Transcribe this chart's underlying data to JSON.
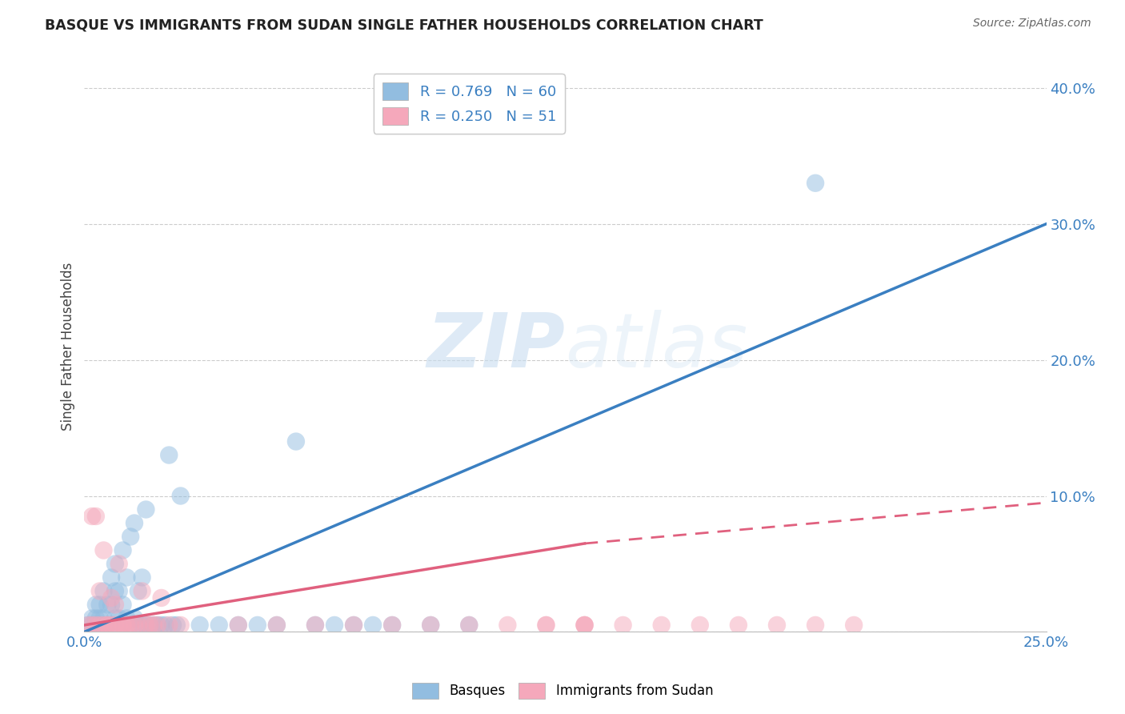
{
  "title": "BASQUE VS IMMIGRANTS FROM SUDAN SINGLE FATHER HOUSEHOLDS CORRELATION CHART",
  "source": "Source: ZipAtlas.com",
  "ylabel": "Single Father Households",
  "background_color": "#ffffff",
  "watermark_zip": "ZIP",
  "watermark_atlas": "atlas",
  "legend1_label": "R = 0.769   N = 60",
  "legend2_label": "R = 0.250   N = 51",
  "legend_bottom1": "Basques",
  "legend_bottom2": "Immigrants from Sudan",
  "blue_color": "#92bde0",
  "blue_line_color": "#3a7fc1",
  "pink_color": "#f5a8bb",
  "pink_line_color": "#e0607e",
  "xlim": [
    0.0,
    0.25
  ],
  "ylim": [
    0.0,
    0.42
  ],
  "yticks": [
    0.0,
    0.1,
    0.2,
    0.3,
    0.4
  ],
  "ytick_labels": [
    "",
    "10.0%",
    "20.0%",
    "30.0%",
    "40.0%"
  ],
  "xticks": [
    0.0,
    0.05,
    0.1,
    0.15,
    0.2,
    0.25
  ],
  "xtick_labels": [
    "0.0%",
    "",
    "",
    "",
    "",
    "25.0%"
  ],
  "blue_scatter_x": [
    0.001,
    0.002,
    0.002,
    0.003,
    0.003,
    0.003,
    0.004,
    0.004,
    0.004,
    0.005,
    0.005,
    0.005,
    0.006,
    0.006,
    0.007,
    0.007,
    0.007,
    0.008,
    0.008,
    0.008,
    0.009,
    0.009,
    0.01,
    0.01,
    0.01,
    0.011,
    0.011,
    0.012,
    0.012,
    0.013,
    0.013,
    0.014,
    0.014,
    0.015,
    0.015,
    0.016,
    0.016,
    0.017,
    0.018,
    0.019,
    0.02,
    0.021,
    0.022,
    0.023,
    0.024,
    0.025,
    0.03,
    0.035,
    0.04,
    0.045,
    0.05,
    0.055,
    0.06,
    0.065,
    0.07,
    0.075,
    0.08,
    0.09,
    0.1,
    0.19
  ],
  "blue_scatter_y": [
    0.005,
    0.005,
    0.01,
    0.005,
    0.01,
    0.02,
    0.005,
    0.01,
    0.02,
    0.005,
    0.01,
    0.03,
    0.005,
    0.02,
    0.005,
    0.02,
    0.04,
    0.01,
    0.03,
    0.05,
    0.01,
    0.03,
    0.005,
    0.02,
    0.06,
    0.01,
    0.04,
    0.005,
    0.07,
    0.01,
    0.08,
    0.005,
    0.03,
    0.005,
    0.04,
    0.005,
    0.09,
    0.005,
    0.005,
    0.005,
    0.005,
    0.005,
    0.13,
    0.005,
    0.005,
    0.1,
    0.005,
    0.005,
    0.005,
    0.005,
    0.005,
    0.14,
    0.005,
    0.005,
    0.005,
    0.005,
    0.005,
    0.005,
    0.005,
    0.33
  ],
  "pink_scatter_x": [
    0.001,
    0.002,
    0.002,
    0.003,
    0.003,
    0.004,
    0.004,
    0.005,
    0.005,
    0.006,
    0.006,
    0.007,
    0.007,
    0.008,
    0.008,
    0.009,
    0.009,
    0.01,
    0.01,
    0.011,
    0.012,
    0.013,
    0.014,
    0.015,
    0.016,
    0.017,
    0.018,
    0.019,
    0.02,
    0.022,
    0.025,
    0.05,
    0.07,
    0.08,
    0.09,
    0.1,
    0.11,
    0.12,
    0.13,
    0.14,
    0.15,
    0.16,
    0.17,
    0.18,
    0.19,
    0.2,
    0.12,
    0.13,
    0.04,
    0.06,
    0.13
  ],
  "pink_scatter_y": [
    0.005,
    0.005,
    0.085,
    0.005,
    0.085,
    0.005,
    0.03,
    0.005,
    0.06,
    0.005,
    0.005,
    0.025,
    0.005,
    0.005,
    0.02,
    0.005,
    0.05,
    0.005,
    0.005,
    0.005,
    0.005,
    0.005,
    0.005,
    0.03,
    0.005,
    0.005,
    0.005,
    0.005,
    0.025,
    0.005,
    0.005,
    0.005,
    0.005,
    0.005,
    0.005,
    0.005,
    0.005,
    0.005,
    0.005,
    0.005,
    0.005,
    0.005,
    0.005,
    0.005,
    0.005,
    0.005,
    0.005,
    0.005,
    0.005,
    0.005,
    0.005
  ],
  "blue_line_x": [
    0.0,
    0.25
  ],
  "blue_line_y": [
    0.0,
    0.3
  ],
  "pink_solid_line_x": [
    0.0,
    0.13
  ],
  "pink_solid_line_y": [
    0.005,
    0.065
  ],
  "pink_dashed_line_x": [
    0.13,
    0.25
  ],
  "pink_dashed_line_y": [
    0.065,
    0.095
  ]
}
